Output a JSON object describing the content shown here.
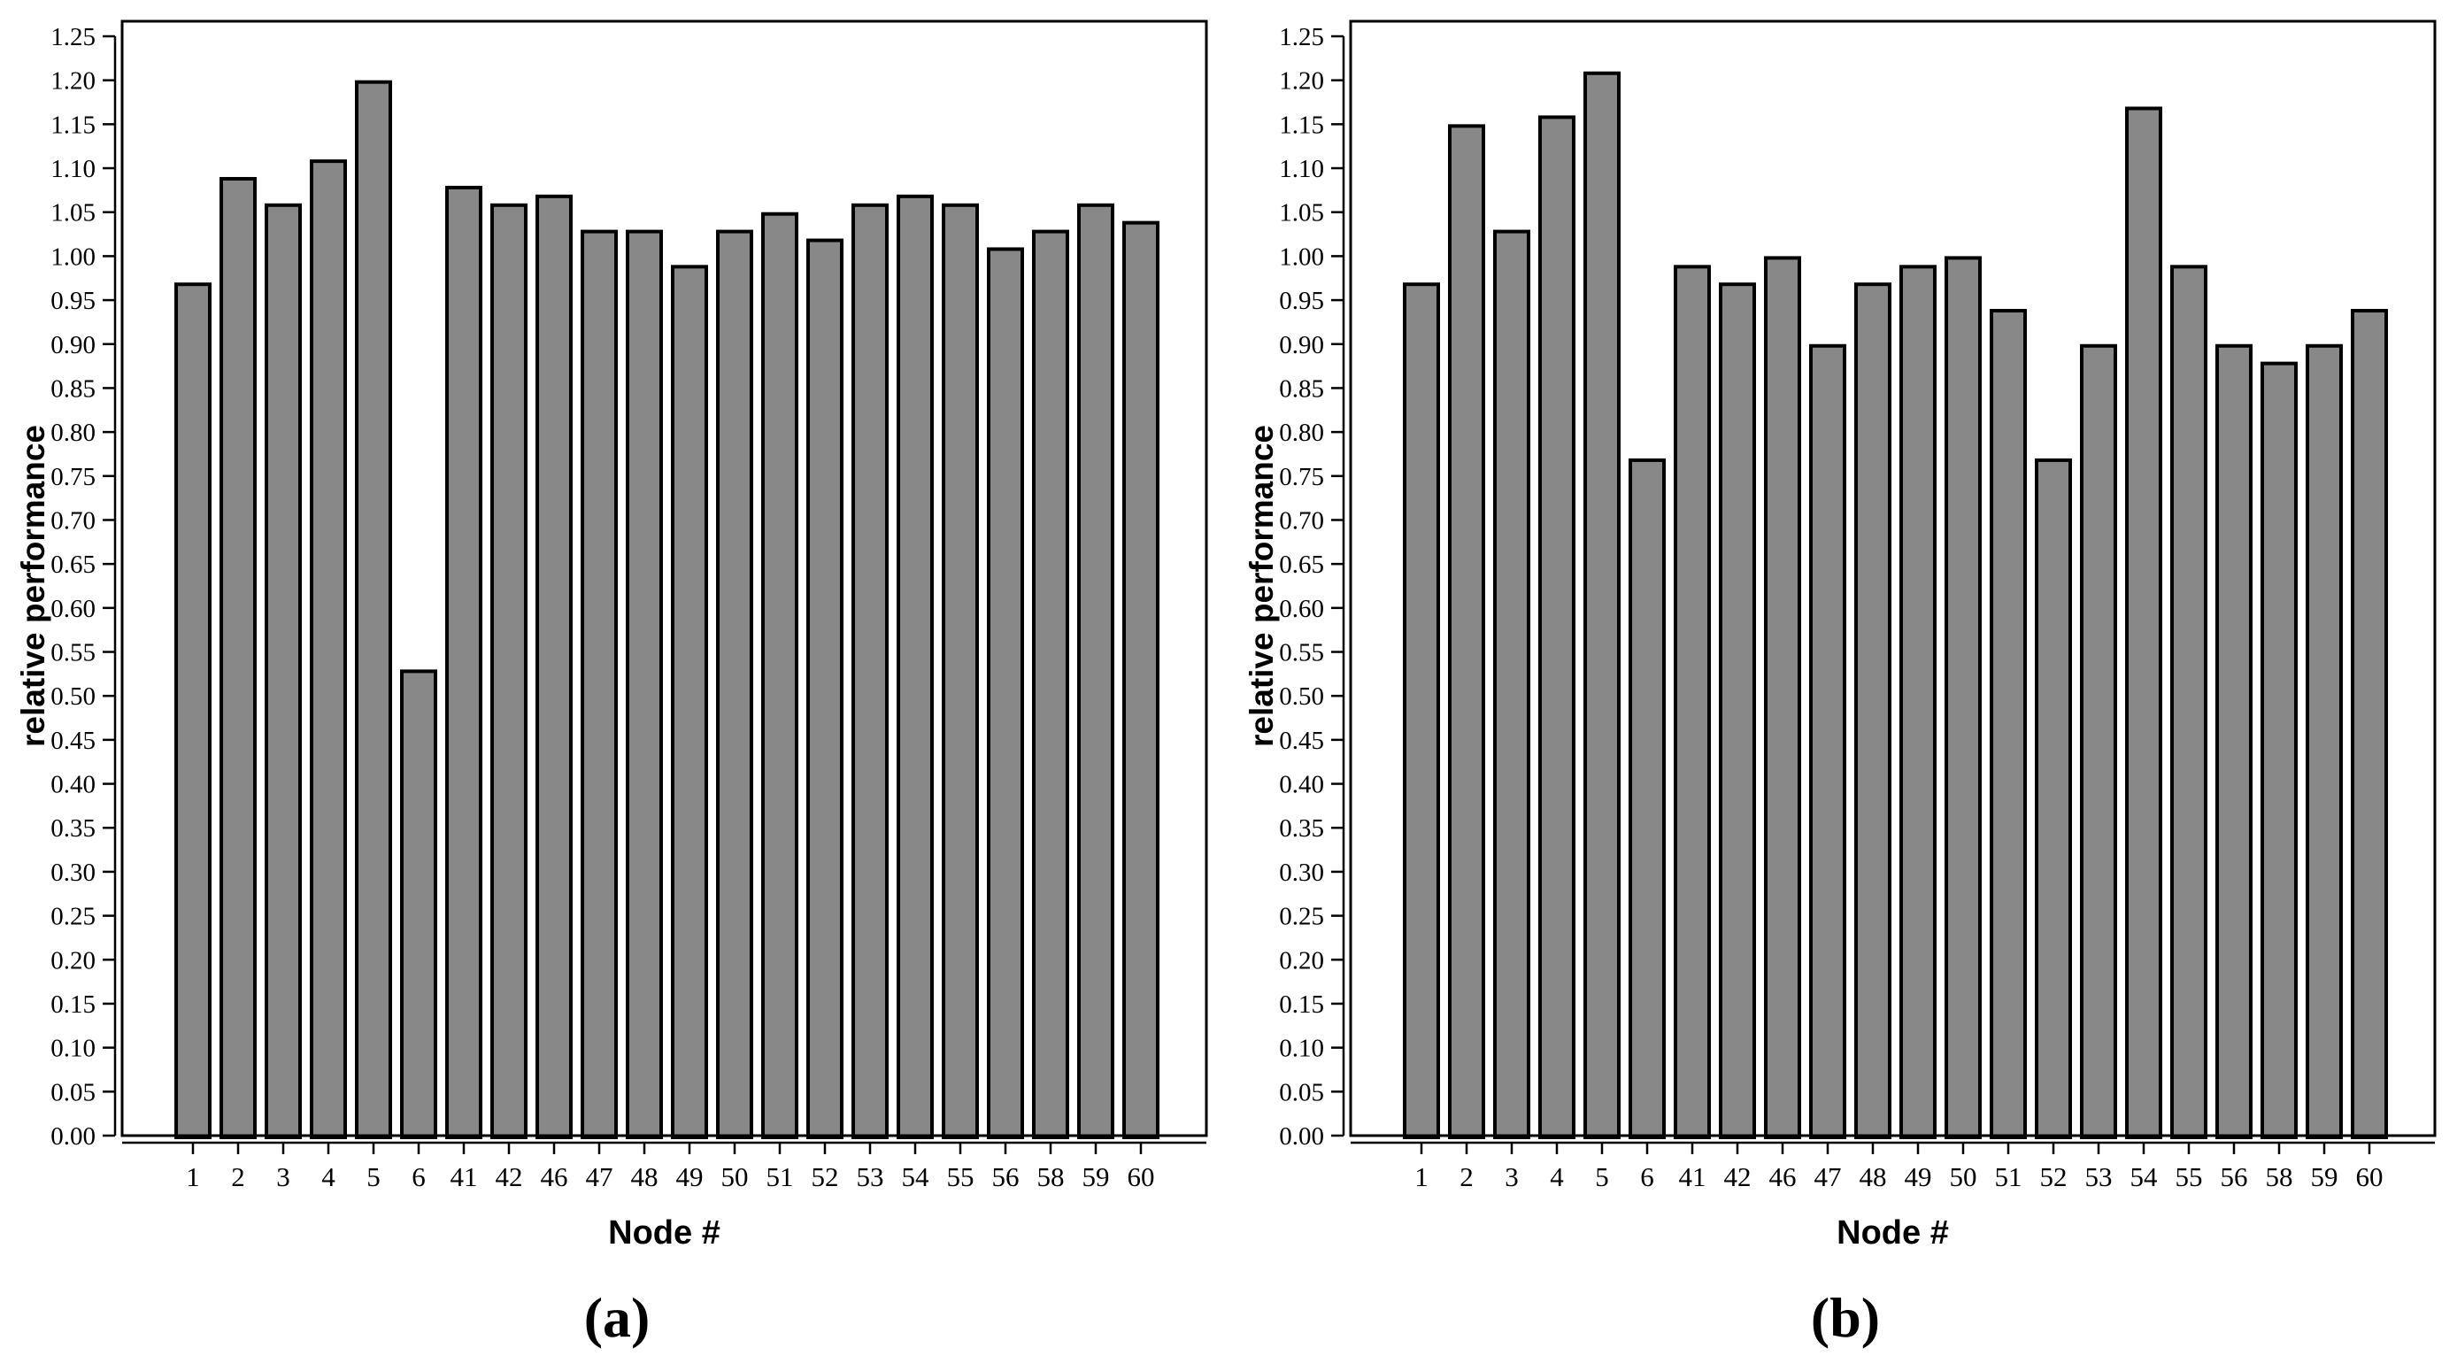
{
  "figure": {
    "background": "#ffffff",
    "bar_fill": "#888888",
    "bar_stroke": "#000000",
    "axis_color": "#000000",
    "text_color": "#000000"
  },
  "chart_data": [
    {
      "type": "bar",
      "panel": "a",
      "caption": "(a)",
      "title": "",
      "xlabel": "Node #",
      "ylabel": "relative performance",
      "categories": [
        "1",
        "2",
        "3",
        "4",
        "5",
        "6",
        "41",
        "42",
        "46",
        "47",
        "48",
        "49",
        "50",
        "51",
        "52",
        "53",
        "54",
        "55",
        "56",
        "58",
        "59",
        "60"
      ],
      "values": [
        0.97,
        1.09,
        1.06,
        1.11,
        1.2,
        0.53,
        1.08,
        1.06,
        1.07,
        1.03,
        1.03,
        0.99,
        1.03,
        1.05,
        1.02,
        1.06,
        1.07,
        1.06,
        1.01,
        1.03,
        1.06,
        1.04
      ],
      "ylim": [
        0.0,
        1.265
      ],
      "y_tick_step": 0.05,
      "y_ticks": [
        "0.00",
        "0.05",
        "0.10",
        "0.15",
        "0.20",
        "0.25",
        "0.30",
        "0.35",
        "0.40",
        "0.45",
        "0.50",
        "0.55",
        "0.60",
        "0.65",
        "0.70",
        "0.75",
        "0.80",
        "0.85",
        "0.90",
        "0.95",
        "1.00",
        "1.05",
        "1.10",
        "1.15",
        "1.20",
        "1.25"
      ],
      "grid": false,
      "legend": null
    },
    {
      "type": "bar",
      "panel": "b",
      "caption": "(b)",
      "title": "",
      "xlabel": "Node #",
      "ylabel": "relative performance",
      "categories": [
        "1",
        "2",
        "3",
        "4",
        "5",
        "6",
        "41",
        "42",
        "46",
        "47",
        "48",
        "49",
        "50",
        "51",
        "52",
        "53",
        "54",
        "55",
        "56",
        "58",
        "59",
        "60"
      ],
      "values": [
        0.97,
        1.15,
        1.03,
        1.16,
        1.21,
        0.77,
        0.99,
        0.97,
        1.0,
        0.9,
        0.97,
        0.99,
        1.0,
        0.94,
        0.77,
        0.9,
        1.17,
        0.99,
        0.9,
        0.88,
        0.9,
        0.94
      ],
      "ylim": [
        0.0,
        1.265
      ],
      "y_tick_step": 0.05,
      "y_ticks": [
        "0.00",
        "0.05",
        "0.10",
        "0.15",
        "0.20",
        "0.25",
        "0.30",
        "0.35",
        "0.40",
        "0.45",
        "0.50",
        "0.55",
        "0.60",
        "0.65",
        "0.70",
        "0.75",
        "0.80",
        "0.85",
        "0.90",
        "0.95",
        "1.00",
        "1.05",
        "1.10",
        "1.15",
        "1.20",
        "1.25"
      ],
      "grid": false,
      "legend": null
    }
  ]
}
